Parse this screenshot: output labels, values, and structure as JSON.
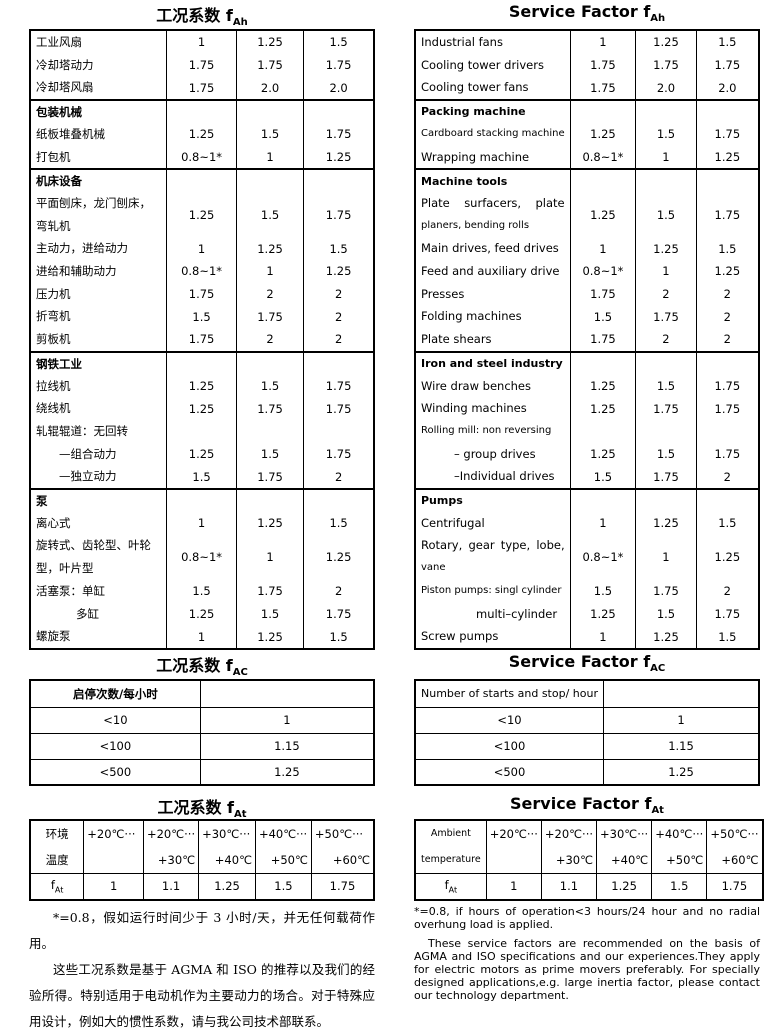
{
  "left": {
    "title_fah": {
      "text": "工况系数 f",
      "sub": "Ah"
    },
    "fah": {
      "rows": [
        {
          "lines": [
            "工业风扇"
          ],
          "values": [
            "1",
            "1.25",
            "1.5"
          ]
        },
        {
          "lines": [
            "冷却塔动力"
          ],
          "values": [
            "1.75",
            "1.75",
            "1.75"
          ]
        },
        {
          "lines": [
            "冷却塔风扇"
          ],
          "values": [
            "1.75",
            "2.0",
            "2.0"
          ]
        },
        {
          "heading": "包装机械"
        },
        {
          "lines": [
            "纸板堆叠机械"
          ],
          "values": [
            "1.25",
            "1.5",
            "1.75"
          ]
        },
        {
          "lines": [
            "打包机"
          ],
          "values": [
            "0.8~1*",
            "1",
            "1.25"
          ]
        },
        {
          "heading": "机床设备"
        },
        {
          "lines": [
            "平面刨床，龙门刨床，",
            "弯轧机"
          ],
          "values": [
            "1.25",
            "1.5",
            "1.75"
          ]
        },
        {
          "lines": [
            "主动力，进给动力"
          ],
          "values": [
            "1",
            "1.25",
            "1.5"
          ]
        },
        {
          "lines": [
            "进给和辅助动力"
          ],
          "values": [
            "0.8~1*",
            "1",
            "1.25"
          ]
        },
        {
          "lines": [
            "压力机"
          ],
          "values": [
            "1.75",
            "2",
            "2"
          ]
        },
        {
          "lines": [
            "折弯机"
          ],
          "values": [
            "1.5",
            "1.75",
            "2"
          ]
        },
        {
          "lines": [
            "剪板机"
          ],
          "values": [
            "1.75",
            "2",
            "2"
          ]
        },
        {
          "heading": "钢铁工业"
        },
        {
          "lines": [
            "拉线机"
          ],
          "values": [
            "1.25",
            "1.5",
            "1.75"
          ]
        },
        {
          "lines": [
            "绕线机"
          ],
          "values": [
            "1.25",
            "1.75",
            "1.75"
          ]
        },
        {
          "lines": [
            "轧辊辊道：无回转"
          ],
          "values": []
        },
        {
          "lines": [
            "—组合动力"
          ],
          "values": [
            "1.25",
            "1.5",
            "1.75"
          ]
        },
        {
          "lines": [
            "—独立动力"
          ],
          "values": [
            "1.5",
            "1.75",
            "2"
          ]
        },
        {
          "heading": "泵"
        },
        {
          "lines": [
            "离心式"
          ],
          "values": [
            "1",
            "1.25",
            "1.5"
          ]
        },
        {
          "lines": [
            "旋转式、齿轮型、叶轮",
            "型，叶片型"
          ],
          "values": [
            "0.8~1*",
            "1",
            "1.25"
          ]
        },
        {
          "lines": [
            "活塞泵：单缸"
          ],
          "values": [
            "1.5",
            "1.75",
            "2"
          ]
        },
        {
          "lines": [
            "多缸"
          ],
          "values": [
            "1.25",
            "1.5",
            "1.75"
          ]
        },
        {
          "lines": [
            "螺旋泵"
          ],
          "values": [
            "1",
            "1.25",
            "1.5"
          ]
        }
      ]
    },
    "title_fac": {
      "text": "工况系数 f",
      "sub": "AC"
    },
    "fac": {
      "header": "启停次数/每小时",
      "rows": [
        [
          "<10",
          "1"
        ],
        [
          "<100",
          "1.15"
        ],
        [
          "<500",
          "1.25"
        ]
      ]
    },
    "title_fat": {
      "text": "工况系数 f",
      "sub": "At"
    },
    "fat": {
      "header_label": [
        "环境",
        "温度"
      ],
      "header": [
        [
          "+20℃···"
        ],
        [
          "+20℃···",
          "+30℃"
        ],
        [
          "+30℃···",
          "+40℃"
        ],
        [
          "+40℃···",
          "+50℃"
        ],
        [
          "+50℃···",
          "+60℃"
        ]
      ],
      "row_label": {
        "text": "f",
        "sub": "At"
      },
      "values": [
        "1",
        "1.1",
        "1.25",
        "1.5",
        "1.75"
      ]
    },
    "notes": [
      "*=0.8，假如运行时间少于 3 小时/天，并无任何载荷作用。",
      "这些工况系数是基于 AGMA 和 ISO 的推荐以及我们的经验所得。特别适用于电动机作为主要动力的场合。对于特殊应用设计，例如大的惯性系数，请与我公司技术部联系。"
    ]
  },
  "right": {
    "title_fah": {
      "text": "Service Factor f",
      "sub": "Ah"
    },
    "fah": {
      "rows": [
        {
          "lines": [
            "Industrial fans"
          ],
          "values": [
            "1",
            "1.25",
            "1.5"
          ]
        },
        {
          "lines": [
            "Cooling tower drivers"
          ],
          "values": [
            "1.75",
            "1.75",
            "1.75"
          ]
        },
        {
          "lines": [
            "Cooling tower fans"
          ],
          "values": [
            "1.75",
            "2.0",
            "2.0"
          ]
        },
        {
          "heading": "Packing machine"
        },
        {
          "lines": [
            "Cardboard stacking machine"
          ],
          "values": [
            "1.25",
            "1.5",
            "1.75"
          ]
        },
        {
          "lines": [
            "Wrapping machine"
          ],
          "values": [
            "0.8~1*",
            "1",
            "1.25"
          ]
        },
        {
          "heading": "Machine tools"
        },
        {
          "lines": [
            "Plate surfacers, plate",
            "planers, bending rolls"
          ],
          "values": [
            "1.25",
            "1.5",
            "1.75"
          ]
        },
        {
          "lines": [
            "Main drives, feed drives"
          ],
          "values": [
            "1",
            "1.25",
            "1.5"
          ]
        },
        {
          "lines": [
            "Feed and auxiliary drive"
          ],
          "values": [
            "0.8~1*",
            "1",
            "1.25"
          ]
        },
        {
          "lines": [
            "Presses"
          ],
          "values": [
            "1.75",
            "2",
            "2"
          ]
        },
        {
          "lines": [
            "Folding machines"
          ],
          "values": [
            "1.5",
            "1.75",
            "2"
          ]
        },
        {
          "lines": [
            "Plate shears"
          ],
          "values": [
            "1.75",
            "2",
            "2"
          ]
        },
        {
          "heading": "Iron and steel industry"
        },
        {
          "lines": [
            "Wire draw benches"
          ],
          "values": [
            "1.25",
            "1.5",
            "1.75"
          ]
        },
        {
          "lines": [
            "Winding machines"
          ],
          "values": [
            "1.25",
            "1.75",
            "1.75"
          ]
        },
        {
          "lines": [
            "Rolling mill: non reversing"
          ],
          "values": []
        },
        {
          "lines": [
            "– group drives"
          ],
          "values": [
            "1.25",
            "1.5",
            "1.75"
          ]
        },
        {
          "lines": [
            "–Individual drives"
          ],
          "values": [
            "1.5",
            "1.75",
            "2"
          ]
        },
        {
          "heading": "Pumps"
        },
        {
          "lines": [
            "Centrifugal"
          ],
          "values": [
            "1",
            "1.25",
            "1.5"
          ]
        },
        {
          "lines": [
            "Rotary, gear type, lobe,",
            "vane"
          ],
          "values": [
            "0.8~1*",
            "1",
            "1.25"
          ]
        },
        {
          "lines": [
            "Piston pumps: singl cylinder"
          ],
          "values": [
            "1.5",
            "1.75",
            "2"
          ]
        },
        {
          "lines": [
            "multi–cylinder"
          ],
          "values": [
            "1.25",
            "1.5",
            "1.75"
          ]
        },
        {
          "lines": [
            "Screw pumps"
          ],
          "values": [
            "1",
            "1.25",
            "1.5"
          ]
        }
      ]
    },
    "title_fac": {
      "text": "Service Factor f",
      "sub": "AC"
    },
    "fac": {
      "header": "Number of starts and stop/ hour",
      "rows": [
        [
          "<10",
          "1"
        ],
        [
          "<100",
          "1.15"
        ],
        [
          "<500",
          "1.25"
        ]
      ]
    },
    "title_fat": {
      "text": "Service Factor f",
      "sub": "At"
    },
    "fat": {
      "header_label": [
        "Ambient",
        "temperature"
      ],
      "header": [
        [
          "+20℃···"
        ],
        [
          "+20℃···",
          "+30℃"
        ],
        [
          "+30℃···",
          "+40℃"
        ],
        [
          "+40℃···",
          "+50℃"
        ],
        [
          "+50℃···",
          "+60℃"
        ]
      ],
      "row_label": {
        "text": "f",
        "sub": "At"
      },
      "values": [
        "1",
        "1.1",
        "1.25",
        "1.5",
        "1.75"
      ]
    },
    "notes": [
      "*=0.8, if hours of operation<3 hours/24 hour and no radial overhung load is applied.",
      "These service factors are recommended on the basis of AGMA and ISO specifications and our experiences.They apply for electric motors as prime movers preferably. For specially designed applications,e.g. large inertia factor, please contact our technology department."
    ]
  }
}
